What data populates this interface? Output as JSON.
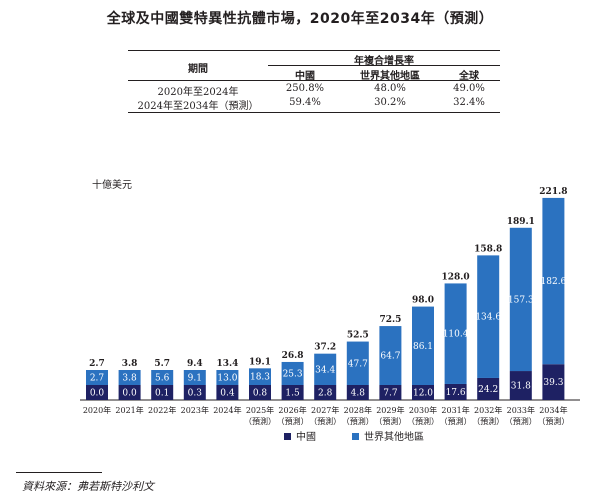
{
  "title": "全球及中國雙特異性抗體市場，2020年至2034年（預測）",
  "cagr_table": {
    "header_group": "年複合增長率",
    "period_header": "期間",
    "columns": [
      "中國",
      "世界其他地區",
      "全球"
    ],
    "rows": [
      {
        "period": "2020年至2024年",
        "values": [
          "250.8%",
          "48.0%",
          "49.0%"
        ]
      },
      {
        "period": "2024年至2034年（預測）",
        "values": [
          "59.4%",
          "30.2%",
          "32.4%"
        ]
      }
    ]
  },
  "unit_label": "十億美元",
  "source": "資料來源：弗若斯特沙利文",
  "colors": {
    "china": "#1e2163",
    "row": "#2b72c0",
    "text": "#231f20"
  },
  "chart_data": {
    "type": "bar",
    "stacked": true,
    "categories": [
      "2020年",
      "2021年",
      "2022年",
      "2023年",
      "2024年",
      "2025年\n（預測）",
      "2026年\n（預測）",
      "2027年\n（預測）",
      "2028年\n（預測）",
      "2029年\n（預測）",
      "2030年\n（預測）",
      "2031年\n（預測）",
      "2032年\n（預測）",
      "2033年\n（預測）",
      "2034年\n（預測）"
    ],
    "series": [
      {
        "name": "中國",
        "values": [
          0.0,
          0.0,
          0.1,
          0.3,
          0.4,
          0.8,
          1.5,
          2.8,
          4.8,
          7.7,
          12.0,
          17.6,
          24.2,
          31.8,
          39.3
        ]
      },
      {
        "name": "世界其他地區",
        "values": [
          2.7,
          3.8,
          5.6,
          9.1,
          13.0,
          18.3,
          25.3,
          34.4,
          47.7,
          64.7,
          86.1,
          110.4,
          134.6,
          157.3,
          182.6
        ]
      }
    ],
    "totals": [
      2.7,
      3.8,
      5.7,
      9.4,
      13.4,
      19.1,
      26.8,
      37.2,
      52.5,
      72.5,
      98.0,
      128.0,
      158.8,
      189.1,
      221.8
    ],
    "ylabel": "十億美元",
    "ylim": [
      0,
      221.8
    ],
    "legend": [
      "中國",
      "世界其他地區"
    ],
    "legend_position": "bottom"
  }
}
